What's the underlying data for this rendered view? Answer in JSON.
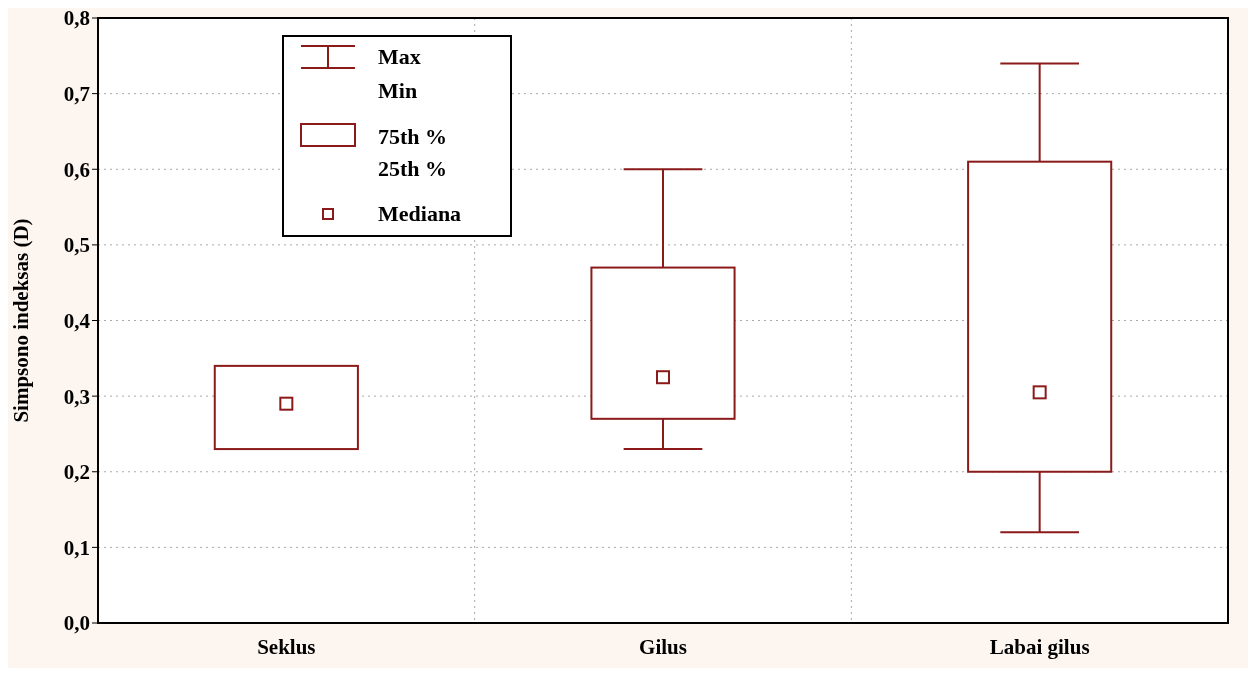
{
  "chart_data": {
    "type": "box",
    "ylabel": "Simpsono indeksas (D)",
    "categories": [
      "Seklus",
      "Gilus",
      "Labai gilus"
    ],
    "boxes": [
      {
        "low": 0.23,
        "q1": 0.23,
        "median": 0.29,
        "q3": 0.34,
        "high": 0.34
      },
      {
        "low": 0.23,
        "q1": 0.27,
        "median": 0.325,
        "q3": 0.47,
        "high": 0.6
      },
      {
        "low": 0.12,
        "q1": 0.2,
        "median": 0.305,
        "q3": 0.61,
        "high": 0.74
      }
    ],
    "color": "#8b1a1a",
    "ylim": [
      0,
      0.8
    ],
    "yticks": [
      {
        "value": 0,
        "label": "0,0"
      },
      {
        "value": 0.1,
        "label": "0,1"
      },
      {
        "value": 0.2,
        "label": "0,2"
      },
      {
        "value": 0.3,
        "label": "0,3"
      },
      {
        "value": 0.4,
        "label": "0,4"
      },
      {
        "value": 0.5,
        "label": "0,5"
      },
      {
        "value": 0.6,
        "label": "0,6"
      },
      {
        "value": 0.7,
        "label": "0,7"
      },
      {
        "value": 0.8,
        "label": "0,8"
      }
    ],
    "grid": true,
    "marker": "square",
    "annotations": [
      "Max",
      "Min",
      "75th %",
      "25th %",
      "Mediana"
    ]
  }
}
